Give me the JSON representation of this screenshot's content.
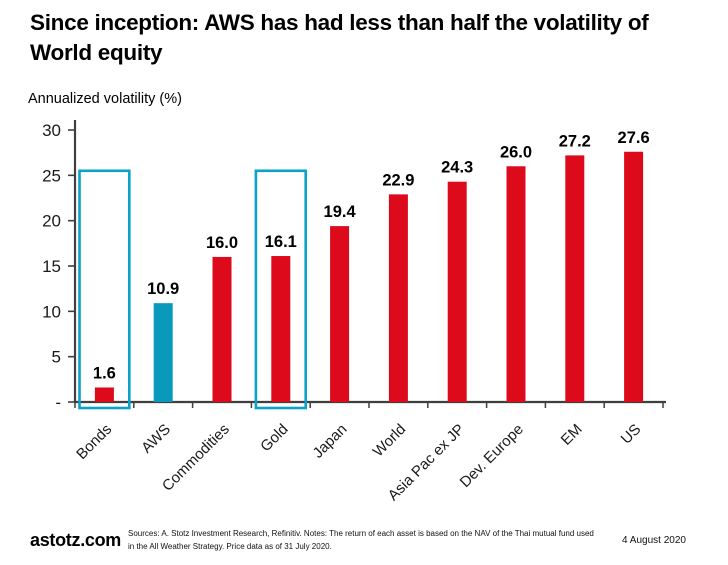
{
  "page": {
    "title": "Since inception: AWS has had less than half the volatility of World equity"
  },
  "chart_data": {
    "type": "bar",
    "title": "Since inception: AWS has had less than half the volatility of World equity",
    "xlabel": "",
    "ylabel": "Annualized volatility (%)",
    "categories": [
      "Bonds",
      "AWS",
      "Commodities",
      "Gold",
      "Japan",
      "World",
      "Asia Pac ex JP",
      "Dev. Europe",
      "EM",
      "US"
    ],
    "values": [
      1.6,
      10.9,
      16.0,
      16.1,
      19.4,
      22.9,
      24.3,
      26.0,
      27.2,
      27.6
    ],
    "value_labels": [
      "1.6",
      "10.9",
      "16.0",
      "16.1",
      "19.4",
      "22.9",
      "24.3",
      "26.0",
      "27.2",
      "27.6"
    ],
    "ylim": [
      0,
      30
    ],
    "yticks": [
      0,
      5,
      10,
      15,
      20,
      25,
      30
    ],
    "ytick_labels": [
      "-",
      "5",
      "10",
      "15",
      "20",
      "25",
      "30"
    ],
    "grid": false,
    "legend": false,
    "bar_color_default": "#dc0a1a",
    "bar_color_highlight": "#0999bd",
    "highlighted_category": "AWS",
    "outlined_categories": [
      "Bonds",
      "Gold"
    ],
    "outline_top_value": 25.5,
    "outline_color": "#0aa2c9",
    "axis_color": "#3f3f3f"
  },
  "footer": {
    "brand": "astotz.com",
    "sources": "Sources: A. Stotz Investment Research, Refinitiv. Notes: The return of each asset is based on the NAV of the Thai mutual fund used in the All Weather Strategy. Price data as of 31 July 2020.",
    "date": "4 August 2020"
  }
}
